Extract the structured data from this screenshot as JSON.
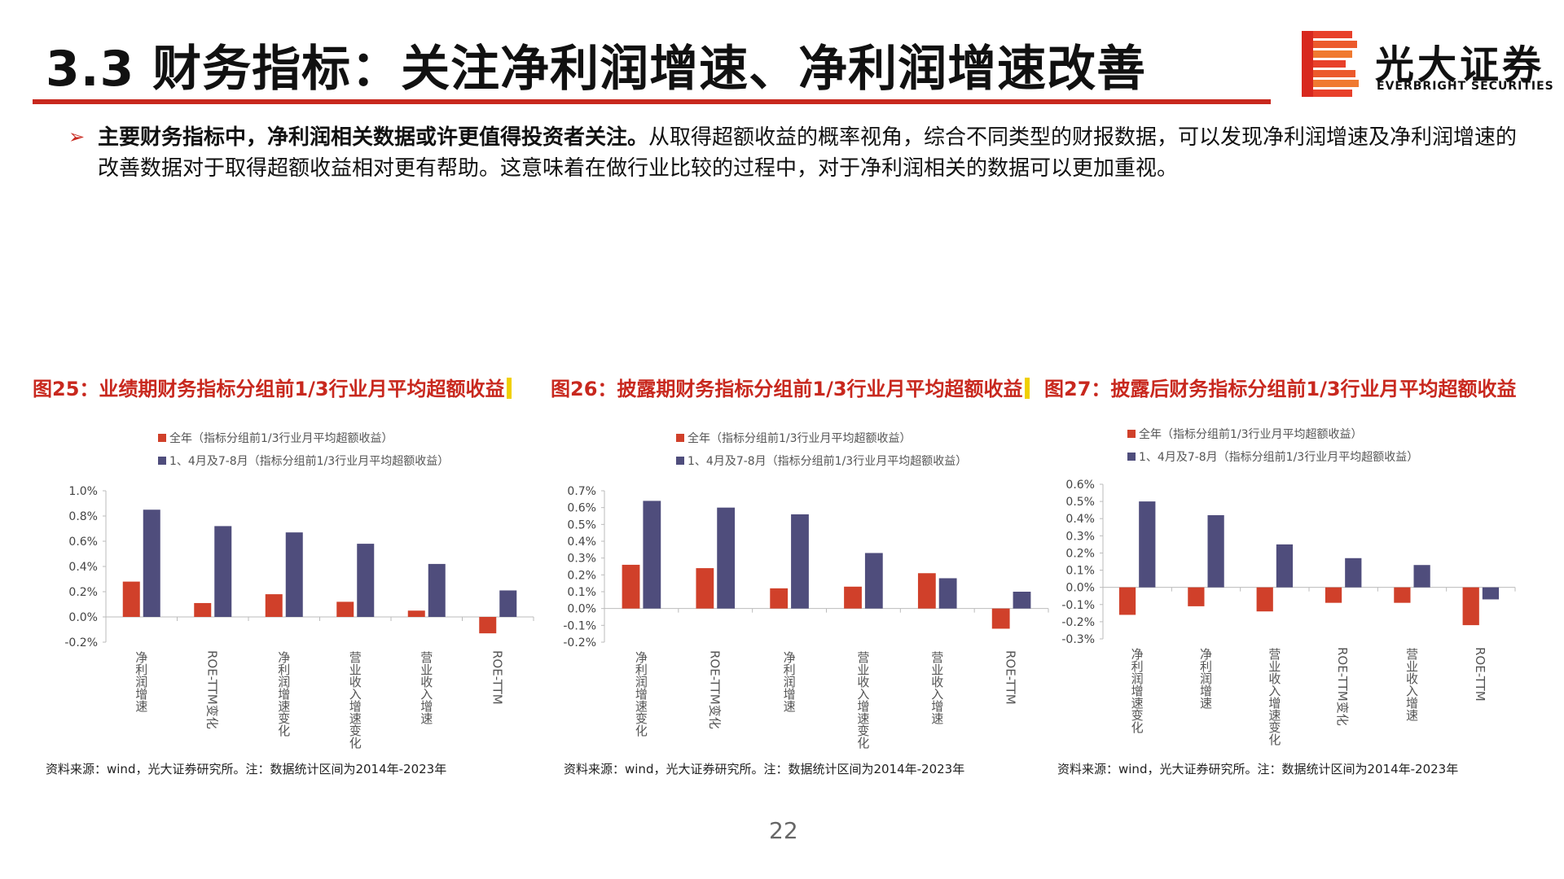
{
  "header": {
    "title": "3.3 财务指标：关注净利润增速、净利润增速改善",
    "logo_cn": "光大证券",
    "logo_en": "EVERBRIGHT SECURITIES"
  },
  "bullet": {
    "bold": "主要财务指标中，净利润相关数据或许更值得投资者关注。",
    "rest": "从取得超额收益的概率视角，综合不同类型的财报数据，可以发现净利润增速及净利润增速的改善数据对于取得超额收益相对更有帮助。这意味着在做行业比较的过程中，对于净利润相关的数据可以更加重视。"
  },
  "colors": {
    "series1": "#d0402a",
    "series2": "#4f4d7c",
    "accent": "#c8281e"
  },
  "chart_data": [
    {
      "type": "bar",
      "title": "图25：业绩期财务指标分组前1/3行业月平均超额收益",
      "categories": [
        "净利润增速",
        "ROE-TTM变化",
        "净利润增速变化",
        "营业收入增速变化",
        "营业收入增速",
        "ROE-TTM"
      ],
      "category_rotate": [
        false,
        true,
        false,
        false,
        false,
        true
      ],
      "series": [
        {
          "name": "全年（指标分组前1/3行业月平均超额收益）",
          "values": [
            0.0028,
            0.0011,
            0.0018,
            0.0012,
            0.0005,
            -0.0013
          ]
        },
        {
          "name": "1、4月及7-8月（指标分组前1/3行业月平均超额收益）",
          "values": [
            0.0085,
            0.0072,
            0.0067,
            0.0058,
            0.0042,
            0.0021
          ]
        }
      ],
      "ylim": [
        -0.002,
        0.01
      ],
      "yticks": [
        -0.002,
        0.0,
        0.002,
        0.004,
        0.006,
        0.008,
        0.01
      ],
      "ytick_labels": [
        "-0.2%",
        "0.0%",
        "0.2%",
        "0.4%",
        "0.6%",
        "0.8%",
        "1.0%"
      ],
      "legend": "top-left",
      "grid": false,
      "source": "资料来源：wind，光大证券研究所。注：数据统计区间为2014年-2023年"
    },
    {
      "type": "bar",
      "title": "图26：披露期财务指标分组前1/3行业月平均超额收益",
      "categories": [
        "净利润增速变化",
        "ROE-TTM变化",
        "净利润增速",
        "营业收入增速变化",
        "营业收入增速",
        "ROE-TTM"
      ],
      "category_rotate": [
        false,
        true,
        false,
        false,
        false,
        true
      ],
      "series": [
        {
          "name": "全年（指标分组前1/3行业月平均超额收益）",
          "values": [
            0.0026,
            0.0024,
            0.0012,
            0.0013,
            0.0021,
            -0.0012
          ]
        },
        {
          "name": "1、4月及7-8月（指标分组前1/3行业月平均超额收益）",
          "values": [
            0.0064,
            0.006,
            0.0056,
            0.0033,
            0.0018,
            0.001
          ]
        }
      ],
      "ylim": [
        -0.002,
        0.007
      ],
      "yticks": [
        -0.002,
        -0.001,
        0.0,
        0.001,
        0.002,
        0.003,
        0.004,
        0.005,
        0.006,
        0.007
      ],
      "ytick_labels": [
        "-0.2%",
        "-0.1%",
        "0.0%",
        "0.1%",
        "0.2%",
        "0.3%",
        "0.4%",
        "0.5%",
        "0.6%",
        "0.7%"
      ],
      "legend": "top-left",
      "grid": false,
      "source": "资料来源：wind，光大证券研究所。注：数据统计区间为2014年-2023年"
    },
    {
      "type": "bar",
      "title": "图27：披露后财务指标分组前1/3行业月平均超额收益",
      "categories": [
        "净利润增速变化",
        "净利润增速",
        "营业收入增速变化",
        "ROE-TTM变化",
        "营业收入增速",
        "ROE-TTM"
      ],
      "category_rotate": [
        false,
        false,
        false,
        true,
        false,
        true
      ],
      "series": [
        {
          "name": "全年（指标分组前1/3行业月平均超额收益）",
          "values": [
            -0.0016,
            -0.0011,
            -0.0014,
            -0.0009,
            -0.0009,
            -0.0022
          ]
        },
        {
          "name": "1、4月及7-8月（指标分组前1/3行业月平均超额收益）",
          "values": [
            0.005,
            0.0042,
            0.0025,
            0.0017,
            0.0013,
            -0.0007
          ]
        }
      ],
      "ylim": [
        -0.003,
        0.006
      ],
      "yticks": [
        -0.003,
        -0.002,
        -0.001,
        0.0,
        0.001,
        0.002,
        0.003,
        0.004,
        0.005,
        0.006
      ],
      "ytick_labels": [
        "-0.3%",
        "-0.2%",
        "-0.1%",
        "0.0%",
        "0.1%",
        "0.2%",
        "0.3%",
        "0.4%",
        "0.5%",
        "0.6%"
      ],
      "legend": "top-left",
      "grid": false,
      "source": "资料来源：wind，光大证券研究所。注：数据统计区间为2014年-2023年"
    }
  ],
  "page_number": "22"
}
